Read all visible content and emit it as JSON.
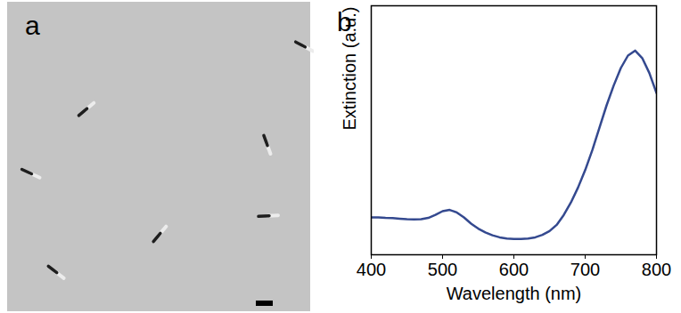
{
  "panel_labels": [
    "a",
    "b"
  ],
  "chart_data": {
    "type": "line",
    "xlabel": "Wavelength (nm)",
    "ylabel": "Extinction (a.u.)",
    "x": [
      400,
      410,
      420,
      430,
      440,
      450,
      460,
      470,
      480,
      490,
      500,
      510,
      520,
      530,
      540,
      550,
      560,
      570,
      580,
      590,
      600,
      610,
      620,
      630,
      640,
      650,
      660,
      670,
      680,
      690,
      700,
      710,
      720,
      730,
      740,
      750,
      760,
      770,
      780,
      790,
      800
    ],
    "values": [
      0.15,
      0.15,
      0.148,
      0.147,
      0.145,
      0.143,
      0.142,
      0.143,
      0.148,
      0.16,
      0.175,
      0.18,
      0.17,
      0.15,
      0.125,
      0.105,
      0.09,
      0.078,
      0.07,
      0.065,
      0.063,
      0.063,
      0.065,
      0.07,
      0.08,
      0.095,
      0.12,
      0.16,
      0.21,
      0.27,
      0.34,
      0.42,
      0.51,
      0.6,
      0.68,
      0.75,
      0.8,
      0.82,
      0.79,
      0.73,
      0.65
    ],
    "color": "#34498f",
    "xlim": [
      400,
      800
    ],
    "xticks": [
      400,
      500,
      600,
      700,
      800
    ],
    "ylim": [
      0,
      1
    ],
    "tick_labels": "x",
    "grid": false
  }
}
